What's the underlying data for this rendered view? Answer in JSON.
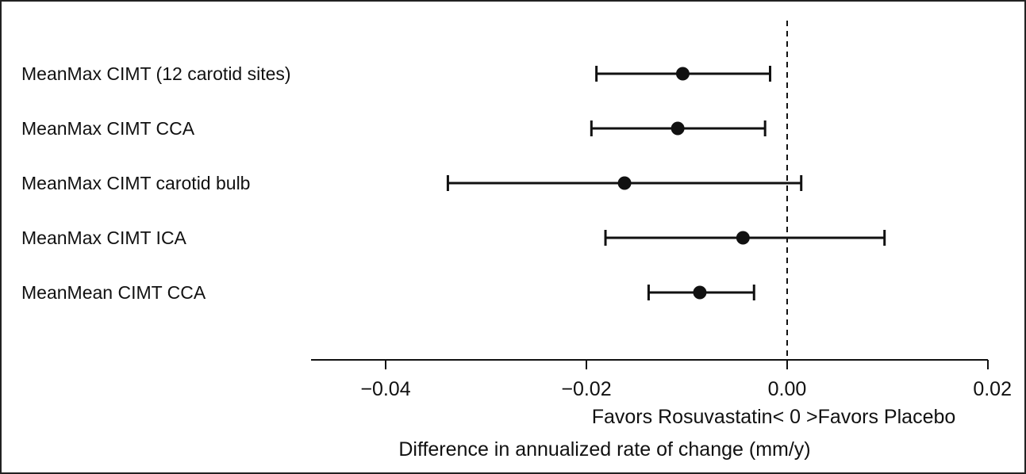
{
  "chart_data": {
    "type": "forest",
    "title": "",
    "xlabel": "Difference in annualized rate of change (mm/y)",
    "direction_label": "Favors Rosuvastatin< 0 >Favors Placebo",
    "xlim": [
      -0.048,
      0.02
    ],
    "xticks": [
      -0.04,
      -0.02,
      0.0,
      0.02
    ],
    "xtick_labels": [
      "−0.04",
      "−0.02",
      "0.00",
      "0.02"
    ],
    "reference_line": 0.0,
    "rows": [
      {
        "label": "MeanMax CIMT (12 carotid sites)",
        "estimate": -0.0104,
        "lower": -0.019,
        "upper": -0.0017
      },
      {
        "label": "MeanMax CIMT CCA",
        "estimate": -0.0109,
        "lower": -0.0195,
        "upper": -0.0022
      },
      {
        "label": "MeanMax CIMT carotid bulb",
        "estimate": -0.0162,
        "lower": -0.0338,
        "upper": 0.0014
      },
      {
        "label": "MeanMax CIMT ICA",
        "estimate": -0.0044,
        "lower": -0.0181,
        "upper": 0.0097
      },
      {
        "label": "MeanMean CIMT CCA",
        "estimate": -0.0087,
        "lower": -0.0138,
        "upper": -0.0033
      }
    ],
    "colors": {
      "marker": "#111111",
      "line": "#111111",
      "frame": "#222222"
    }
  }
}
